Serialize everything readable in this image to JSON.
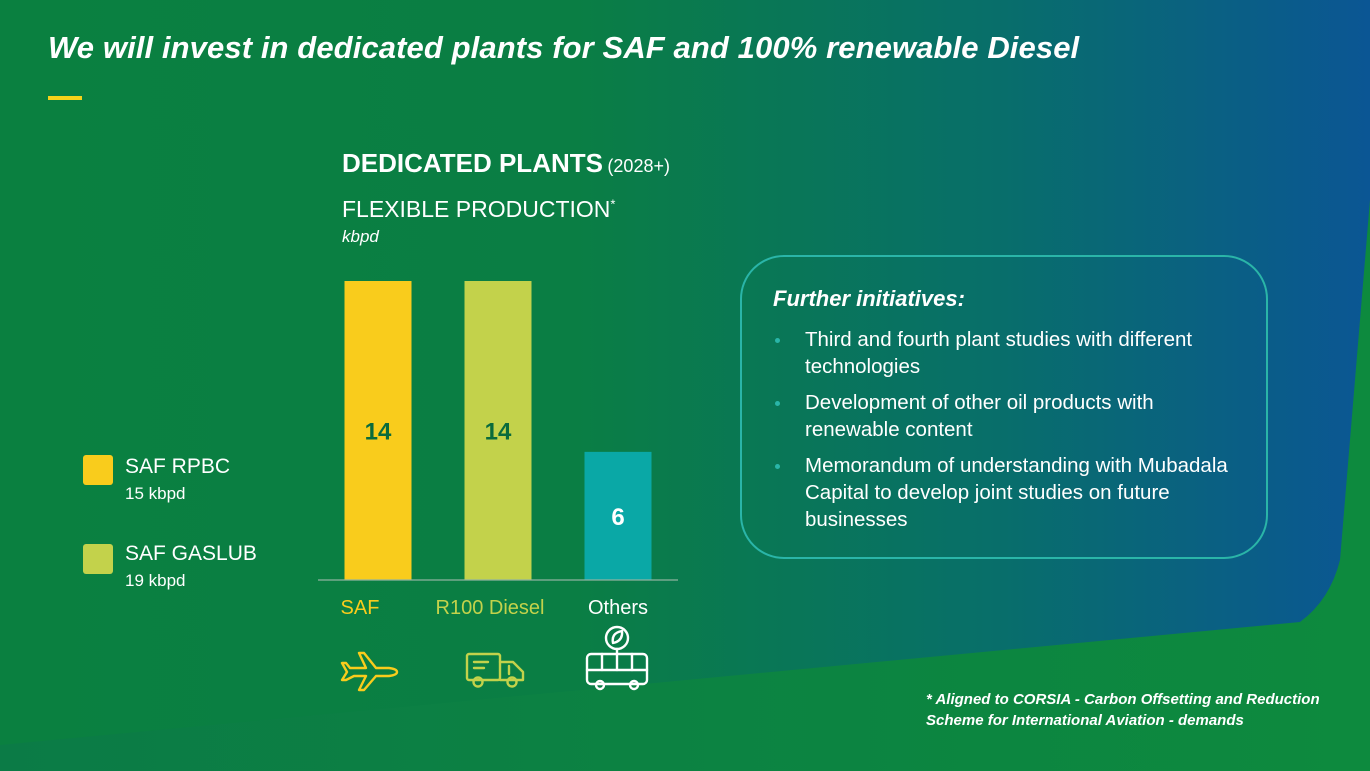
{
  "page": {
    "title": "We will invest in dedicated plants for SAF and 100% renewable Diesel"
  },
  "chart": {
    "title_main": "DEDICATED PLANTS",
    "title_sub": "(2028+)",
    "subtitle": "FLEXIBLE PRODUCTION",
    "subtitle_mark": "*",
    "unit": "kbpd"
  },
  "legend": {
    "items": [
      {
        "name": "SAF RPBC",
        "value": "15 kbpd",
        "color": "#f9cc1c"
      },
      {
        "name": "SAF GASLUB",
        "value": "19 kbpd",
        "color": "#c3d24b"
      }
    ]
  },
  "chart_data": {
    "type": "bar",
    "title": "DEDICATED PLANTS (2028+) FLEXIBLE PRODUCTION*",
    "ylabel": "kbpd",
    "categories": [
      "SAF",
      "R100 Diesel",
      "Others"
    ],
    "values": [
      14,
      14,
      6
    ],
    "colors": [
      "#f9cc1c",
      "#c3d24b",
      "#0aa8a6"
    ],
    "label_colors": [
      "#f9cc1c",
      "#c3d24b",
      "#ffffff"
    ],
    "icons": [
      "airplane-icon",
      "truck-icon",
      "bus-icon"
    ],
    "ylim": [
      0,
      14
    ],
    "grid": false
  },
  "panel": {
    "heading": "Further initiatives:",
    "bullets": [
      "Third and fourth plant studies with different technologies",
      "Development of other oil products with renewable content",
      "Memorandum of understanding with Mubadala Capital to develop joint studies on future businesses"
    ]
  },
  "footnote": {
    "line1": "* Aligned to CORSIA - Carbon Offsetting and Reduction",
    "line2": "Scheme for International Aviation - demands"
  },
  "colors": {
    "background_green": "#0a8040",
    "background_blue": "#0b5b92",
    "accent_yellow": "#f5d21a",
    "panel_border": "#2ab5a8"
  }
}
